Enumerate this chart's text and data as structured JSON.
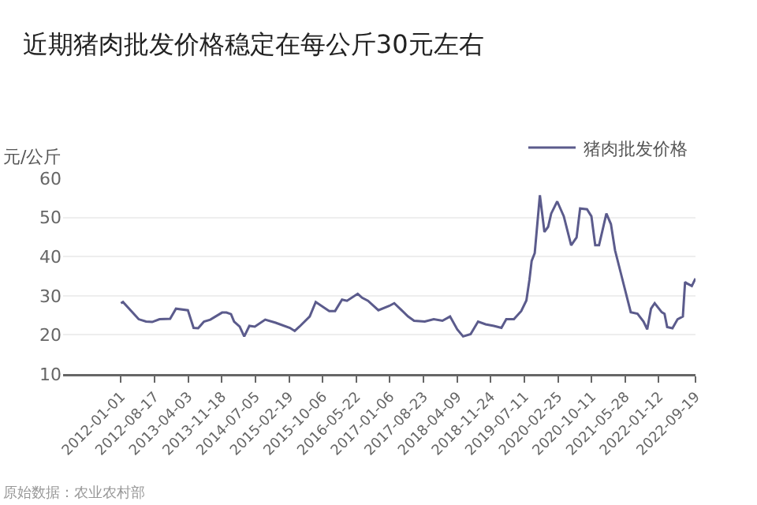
{
  "chart_data": {
    "type": "line",
    "title": "近期猪肉批发价格稳定在每公斤30元左右",
    "ylabel": "元/公斤",
    "x": [
      "2012-01-01",
      "2012-01-15",
      "2012-05-01",
      "2012-06-20",
      "2012-08-01",
      "2012-09-20",
      "2012-12-01",
      "2013-01-10",
      "2013-04-01",
      "2013-05-10",
      "2013-06-10",
      "2013-07-20",
      "2013-09-01",
      "2013-11-20",
      "2013-12-20",
      "2014-01-20",
      "2014-02-10",
      "2014-03-20",
      "2014-04-20",
      "2014-05-25",
      "2014-07-01",
      "2014-09-10",
      "2014-11-20",
      "2015-02-25",
      "2015-03-30",
      "2015-05-01",
      "2015-07-10",
      "2015-08-20",
      "2015-09-25",
      "2015-11-20",
      "2015-12-30",
      "2016-02-15",
      "2016-03-20",
      "2016-06-01",
      "2016-07-01",
      "2016-08-10",
      "2016-10-20",
      "2017-01-01",
      "2017-02-05",
      "2017-05-10",
      "2017-06-20",
      "2017-09-01",
      "2017-11-01",
      "2017-12-30",
      "2018-02-20",
      "2018-04-10",
      "2018-05-20",
      "2018-07-10",
      "2018-08-30",
      "2018-10-20",
      "2018-12-15",
      "2019-02-05",
      "2019-03-10",
      "2019-05-01",
      "2019-06-20",
      "2019-07-25",
      "2019-08-15",
      "2019-08-30",
      "2019-09-20",
      "2019-10-25",
      "2019-11-25",
      "2019-12-20",
      "2020-01-10",
      "2020-02-20",
      "2020-04-05",
      "2020-05-25",
      "2020-07-01",
      "2020-07-25",
      "2020-09-10",
      "2020-10-10",
      "2020-11-05",
      "2020-12-01",
      "2021-01-20",
      "2021-02-20",
      "2021-03-20",
      "2021-05-05",
      "2021-06-10",
      "2021-07-05",
      "2021-08-20",
      "2021-09-30",
      "2021-10-25",
      "2021-11-20",
      "2021-12-15",
      "2022-02-01",
      "2022-02-20",
      "2022-03-10",
      "2022-04-15",
      "2022-05-20",
      "2022-06-25",
      "2022-07-10",
      "2022-07-25",
      "2022-08-25",
      "2022-09-19"
    ],
    "series": [
      {
        "name": "猪肉批发价格",
        "color": "#5b5b8c",
        "values": [
          28.1,
          28.4,
          24.0,
          23.4,
          23.3,
          24.0,
          24.1,
          26.7,
          26.3,
          21.8,
          21.7,
          23.4,
          23.9,
          25.7,
          25.7,
          25.3,
          23.4,
          22.1,
          19.6,
          22.3,
          22.1,
          23.9,
          23.1,
          21.8,
          21.0,
          22.1,
          24.7,
          28.4,
          27.5,
          26.1,
          26.1,
          29.0,
          28.7,
          30.5,
          29.5,
          28.7,
          26.3,
          27.4,
          28.1,
          24.7,
          23.6,
          23.4,
          24.0,
          23.6,
          24.7,
          21.4,
          19.6,
          20.2,
          23.4,
          22.7,
          22.3,
          21.8,
          24.0,
          24.0,
          26.1,
          28.8,
          34.1,
          38.9,
          40.9,
          55.7,
          46.3,
          47.6,
          51.0,
          54.1,
          50.3,
          42.9,
          44.9,
          52.3,
          52.1,
          50.3,
          42.9,
          42.9,
          51.0,
          48.3,
          41.6,
          34.8,
          29.5,
          25.8,
          25.4,
          23.4,
          21.4,
          26.7,
          28.1,
          25.8,
          25.4,
          22.0,
          21.7,
          24.0,
          24.7,
          33.5,
          33.1,
          32.5,
          34.4
        ]
      }
    ],
    "xlim": [
      "2010-12-03",
      "2022-09-19"
    ],
    "xticks": [
      "2012-01-01",
      "2012-08-17",
      "2013-04-03",
      "2013-11-18",
      "2014-07-05",
      "2015-02-19",
      "2015-10-06",
      "2016-05-22",
      "2017-01-06",
      "2017-08-23",
      "2018-04-09",
      "2018-11-24",
      "2019-07-11",
      "2020-02-25",
      "2020-10-11",
      "2021-05-28",
      "2022-01-12",
      "2022-09-19"
    ],
    "ylim": [
      10,
      60
    ],
    "yticks": [
      10,
      20,
      30,
      40,
      50,
      60
    ],
    "grid": "y",
    "legend": "top right",
    "marker": "none",
    "line_style": "solid",
    "annotations": [
      "原始数据：农业农村部"
    ]
  }
}
